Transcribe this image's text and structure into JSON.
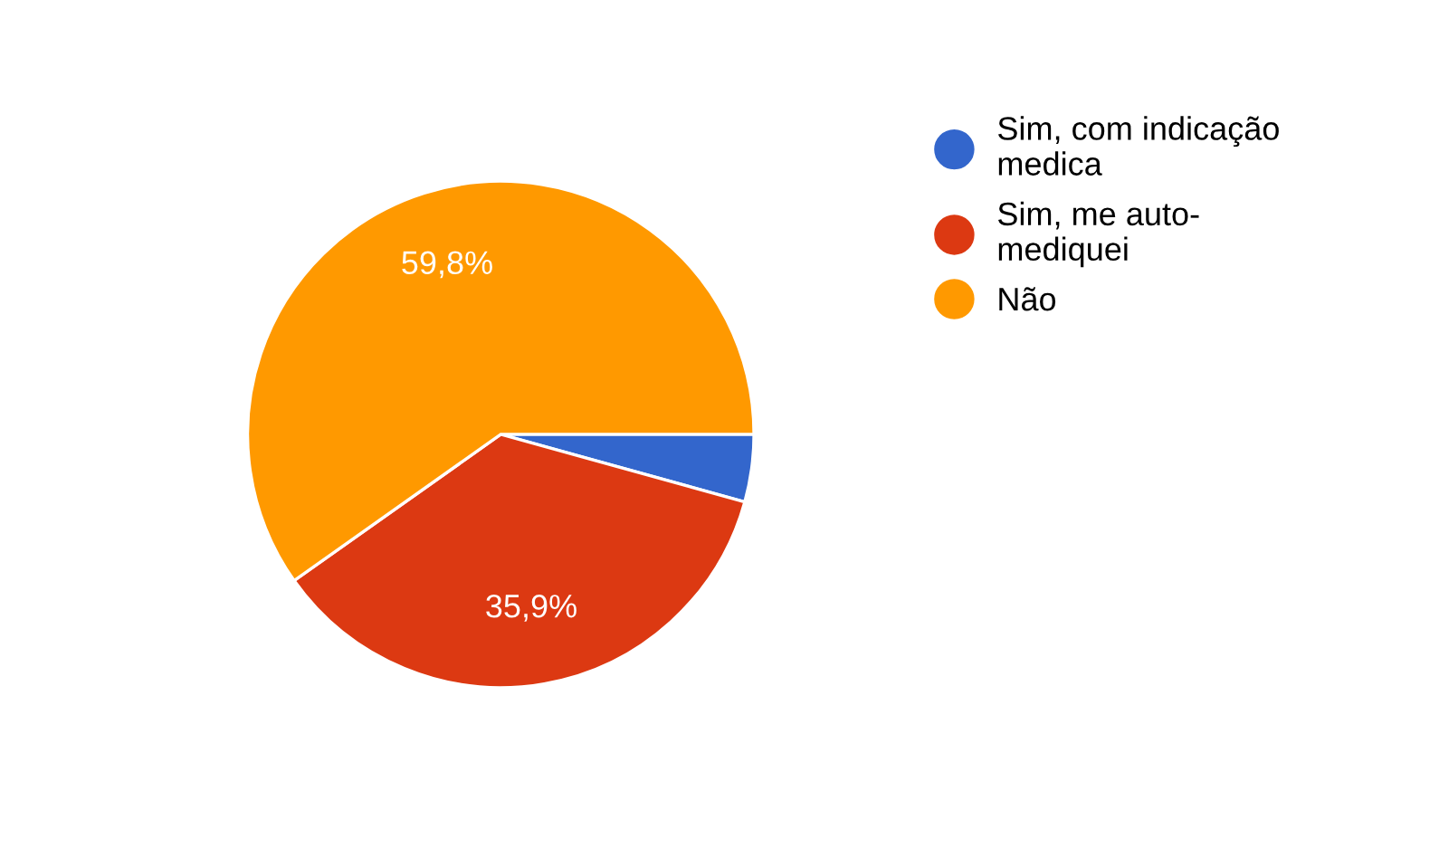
{
  "chart_data": {
    "type": "pie",
    "categories": [
      "Sim, com indicação\nmedica",
      "Sim, me auto-\nmediquei",
      "Não"
    ],
    "values": [
      4.3,
      35.9,
      59.8
    ],
    "value_labels": [
      null,
      "35,9%",
      "59,8%"
    ],
    "colors": [
      "#3366cc",
      "#dc3912",
      "#ff9900"
    ],
    "legend": "top right"
  }
}
